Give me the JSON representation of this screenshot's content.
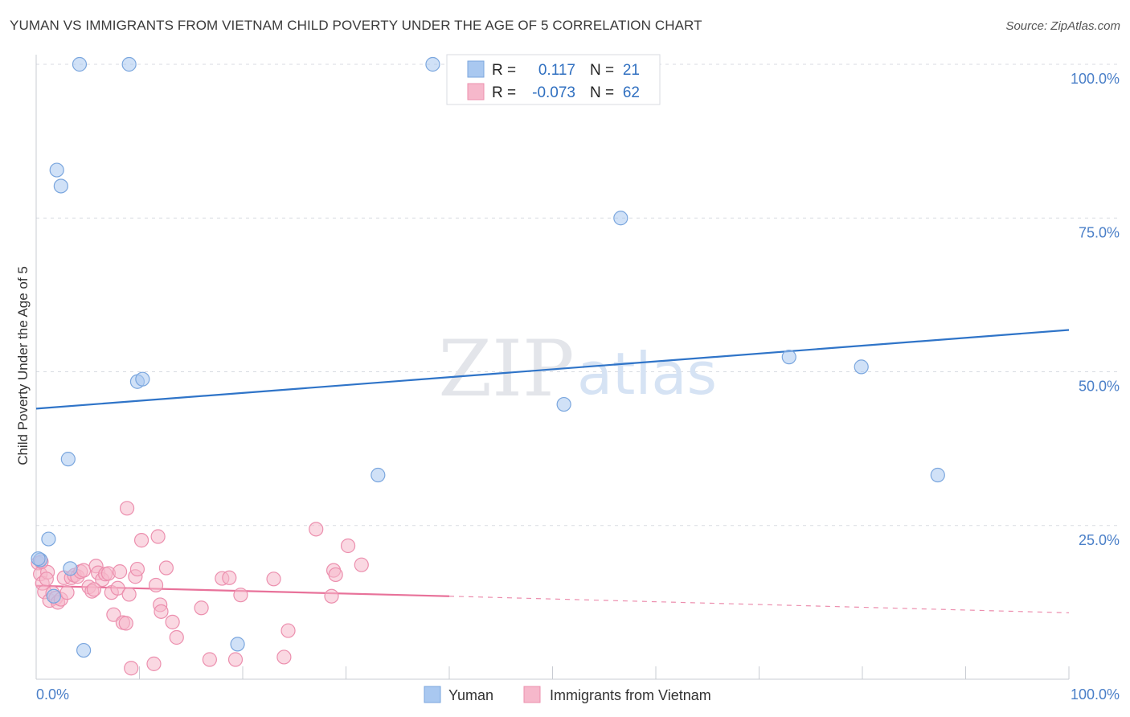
{
  "title": "YUMAN VS IMMIGRANTS FROM VIETNAM CHILD POVERTY UNDER THE AGE OF 5 CORRELATION CHART",
  "source": "Source: ZipAtlas.com",
  "watermark": {
    "zip": "ZIP",
    "atlas": "atlas"
  },
  "colors": {
    "yuman_fill": "#a9c8f0",
    "yuman_stroke": "#7aa6de",
    "yuman_line": "#2f74c8",
    "viet_fill": "#f6b8cb",
    "viet_stroke": "#ec8fae",
    "viet_line": "#e8729a",
    "grid": "#d8dbe2",
    "axis_text": "#4a7fc8"
  },
  "stats": {
    "yuman": {
      "r_label": "R =",
      "r": "0.117",
      "n_label": "N =",
      "n": "21"
    },
    "vietnam": {
      "r_label": "R =",
      "r": "-0.073",
      "n_label": "N =",
      "n": "62"
    }
  },
  "chart_data": {
    "type": "scatter",
    "title": "YUMAN VS IMMIGRANTS FROM VIETNAM CHILD POVERTY UNDER THE AGE OF 5 CORRELATION CHART",
    "xlabel": "",
    "ylabel": "Child Poverty Under the Age of 5",
    "xlim": [
      0,
      100
    ],
    "ylim": [
      0,
      100
    ],
    "x_ticks": [
      "0.0%",
      "100.0%"
    ],
    "y_ticks": [
      {
        "value": 25,
        "label": "25.0%"
      },
      {
        "value": 50,
        "label": "50.0%"
      },
      {
        "value": 75,
        "label": "75.0%"
      },
      {
        "value": 100,
        "label": "100.0%"
      }
    ],
    "legend": [
      "Yuman",
      "Immigrants from Vietnam"
    ],
    "series": [
      {
        "name": "Yuman",
        "points": [
          [
            0.4,
            19.4
          ],
          [
            1.2,
            22.8
          ],
          [
            1.7,
            13.5
          ],
          [
            2.0,
            82.8
          ],
          [
            2.4,
            80.2
          ],
          [
            3.1,
            35.8
          ],
          [
            3.3,
            18.0
          ],
          [
            4.2,
            100.0
          ],
          [
            4.6,
            4.7
          ],
          [
            9.0,
            100.0
          ],
          [
            9.8,
            48.4
          ],
          [
            10.3,
            48.8
          ],
          [
            19.5,
            5.7
          ],
          [
            33.1,
            33.2
          ],
          [
            38.4,
            100.0
          ],
          [
            51.1,
            44.7
          ],
          [
            56.6,
            75.0
          ],
          [
            72.9,
            52.4
          ],
          [
            79.9,
            50.8
          ],
          [
            87.3,
            33.2
          ],
          [
            0.2,
            19.6
          ]
        ],
        "trend": {
          "x": [
            0,
            100
          ],
          "y": [
            44.0,
            56.8
          ],
          "style": "solid"
        }
      },
      {
        "name": "Immigrants from Vietnam",
        "points": [
          [
            0.2,
            18.9
          ],
          [
            0.4,
            17.1
          ],
          [
            0.6,
            15.6
          ],
          [
            0.8,
            14.2
          ],
          [
            1.1,
            17.4
          ],
          [
            1.3,
            12.8
          ],
          [
            1.6,
            14.0
          ],
          [
            1.9,
            13.2
          ],
          [
            2.1,
            12.5
          ],
          [
            2.4,
            13.0
          ],
          [
            2.7,
            16.5
          ],
          [
            3.0,
            14.1
          ],
          [
            3.4,
            16.5
          ],
          [
            3.7,
            16.9
          ],
          [
            4.0,
            16.7
          ],
          [
            4.3,
            17.5
          ],
          [
            4.6,
            17.7
          ],
          [
            5.1,
            15.0
          ],
          [
            5.4,
            14.3
          ],
          [
            5.8,
            18.4
          ],
          [
            6.0,
            17.3
          ],
          [
            6.4,
            16.2
          ],
          [
            6.7,
            17.1
          ],
          [
            7.0,
            17.2
          ],
          [
            7.3,
            14.1
          ],
          [
            7.5,
            10.5
          ],
          [
            7.9,
            14.8
          ],
          [
            8.1,
            17.5
          ],
          [
            8.4,
            9.2
          ],
          [
            8.7,
            9.1
          ],
          [
            8.8,
            27.8
          ],
          [
            9.0,
            13.8
          ],
          [
            9.2,
            1.8
          ],
          [
            9.6,
            16.7
          ],
          [
            9.8,
            17.9
          ],
          [
            10.2,
            22.6
          ],
          [
            11.4,
            2.5
          ],
          [
            11.6,
            15.3
          ],
          [
            11.8,
            23.2
          ],
          [
            12.0,
            12.1
          ],
          [
            12.1,
            11.0
          ],
          [
            12.6,
            18.1
          ],
          [
            13.2,
            9.3
          ],
          [
            13.6,
            6.8
          ],
          [
            16.0,
            11.6
          ],
          [
            16.8,
            3.2
          ],
          [
            18.0,
            16.4
          ],
          [
            18.7,
            16.5
          ],
          [
            19.3,
            3.2
          ],
          [
            19.8,
            13.7
          ],
          [
            23.0,
            16.3
          ],
          [
            24.0,
            3.6
          ],
          [
            24.4,
            7.9
          ],
          [
            27.1,
            24.4
          ],
          [
            28.6,
            13.5
          ],
          [
            28.8,
            17.7
          ],
          [
            29.0,
            17.0
          ],
          [
            30.2,
            21.7
          ],
          [
            31.5,
            18.6
          ],
          [
            0.5,
            19.1
          ],
          [
            1.0,
            16.3
          ],
          [
            5.6,
            14.6
          ]
        ],
        "trend": {
          "x": [
            0,
            40
          ],
          "y": [
            15.2,
            13.5
          ],
          "style": "solid",
          "extended": {
            "x": [
              40,
              100
            ],
            "y": [
              13.5,
              10.8
            ],
            "style": "dashed"
          }
        }
      }
    ]
  }
}
